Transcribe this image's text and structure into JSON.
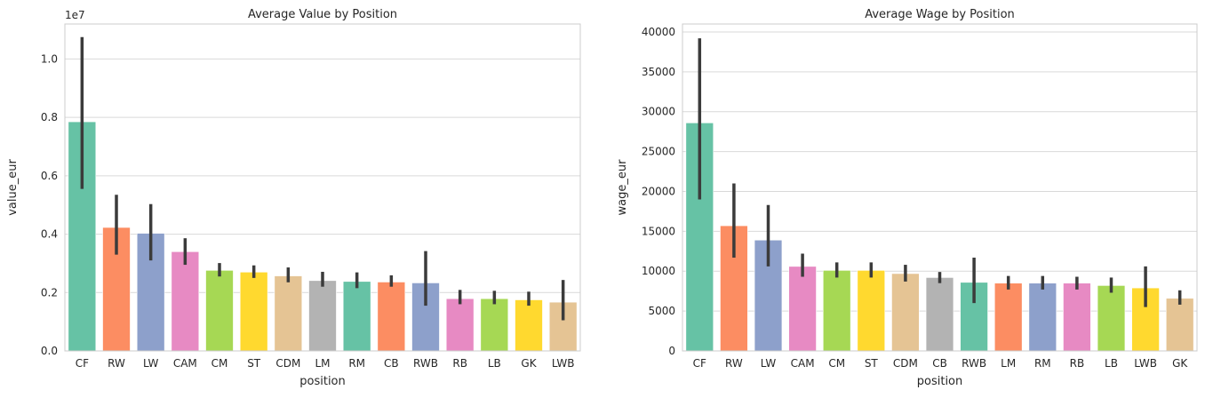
{
  "chart_data": [
    {
      "type": "bar",
      "title": "Average Value by Position",
      "xlabel": "position",
      "ylabel": "value_eur",
      "y_exponent_label": "1e7",
      "ylim": [
        0,
        11200000
      ],
      "yticks": [
        0,
        2000000,
        4000000,
        6000000,
        8000000,
        10000000
      ],
      "ytick_labels": [
        "0.0",
        "0.2",
        "0.4",
        "0.6",
        "0.8",
        "1.0"
      ],
      "grid": true,
      "categories": [
        "CF",
        "RW",
        "LW",
        "CAM",
        "CM",
        "ST",
        "CDM",
        "LM",
        "RM",
        "CB",
        "RWB",
        "RB",
        "LB",
        "GK",
        "LWB"
      ],
      "values": [
        7850000,
        4230000,
        4030000,
        3400000,
        2760000,
        2700000,
        2570000,
        2410000,
        2380000,
        2360000,
        2330000,
        1790000,
        1790000,
        1750000,
        1670000
      ],
      "ci_low": [
        5550000,
        3300000,
        3100000,
        2950000,
        2550000,
        2500000,
        2350000,
        2200000,
        2150000,
        2200000,
        1550000,
        1600000,
        1600000,
        1550000,
        1050000
      ],
      "ci_high": [
        10750000,
        5350000,
        5030000,
        3860000,
        3010000,
        2930000,
        2860000,
        2710000,
        2690000,
        2590000,
        3420000,
        2090000,
        2060000,
        2030000,
        2430000
      ],
      "colors": [
        "#66c2a5",
        "#fc8d62",
        "#8da0cb",
        "#e78ac3",
        "#a6d854",
        "#ffd92f",
        "#e5c494",
        "#b3b3b3",
        "#66c2a5",
        "#fc8d62",
        "#8da0cb",
        "#e78ac3",
        "#a6d854",
        "#ffd92f",
        "#e5c494"
      ]
    },
    {
      "type": "bar",
      "title": "Average Wage by Position",
      "xlabel": "position",
      "ylabel": "wage_eur",
      "ylim": [
        0,
        41000
      ],
      "yticks": [
        0,
        5000,
        10000,
        15000,
        20000,
        25000,
        30000,
        35000,
        40000
      ],
      "ytick_labels": [
        "0",
        "5000",
        "10000",
        "15000",
        "20000",
        "25000",
        "30000",
        "35000",
        "40000"
      ],
      "grid": true,
      "categories": [
        "CF",
        "RW",
        "LW",
        "CAM",
        "CM",
        "ST",
        "CDM",
        "CB",
        "RWB",
        "LM",
        "RM",
        "RB",
        "LB",
        "LWB",
        "GK"
      ],
      "values": [
        28600,
        15700,
        13900,
        10600,
        10100,
        10100,
        9700,
        9200,
        8600,
        8500,
        8500,
        8500,
        8200,
        7900,
        6600
      ],
      "ci_low": [
        19000,
        11700,
        10600,
        9300,
        9200,
        9200,
        8700,
        8500,
        6000,
        7700,
        7700,
        7700,
        7300,
        5500,
        5800
      ],
      "ci_high": [
        39200,
        21000,
        18300,
        12200,
        11100,
        11100,
        10800,
        9900,
        11700,
        9400,
        9400,
        9300,
        9200,
        10600,
        7600
      ],
      "colors": [
        "#66c2a5",
        "#fc8d62",
        "#8da0cb",
        "#e78ac3",
        "#a6d854",
        "#ffd92f",
        "#e5c494",
        "#b3b3b3",
        "#66c2a5",
        "#fc8d62",
        "#8da0cb",
        "#e78ac3",
        "#a6d854",
        "#ffd92f",
        "#e5c494"
      ]
    }
  ]
}
